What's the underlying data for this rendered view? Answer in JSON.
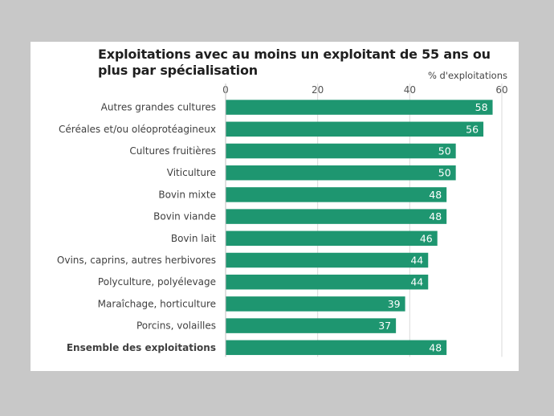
{
  "chart_data": {
    "type": "bar",
    "orientation": "horizontal",
    "title": "Exploitations avec au moins un exploitant de 55 ans ou plus par spécialisation",
    "xlabel": "% d'exploitations",
    "xlim": [
      0,
      60
    ],
    "xticks": [
      0,
      20,
      40,
      60
    ],
    "grid": true,
    "categories": [
      "Autres grandes cultures",
      "Céréales et/ou oléoprotéagineux",
      "Cultures fruitières",
      "Viticulture",
      "Bovin mixte",
      "Bovin viande",
      "Bovin lait",
      "Ovins, caprins, autres herbivores",
      "Polyculture, polyélevage",
      "Maraîchage, horticulture",
      "Porcins, volailles",
      "Ensemble des exploitations"
    ],
    "values": [
      58,
      56,
      50,
      50,
      48,
      48,
      46,
      44,
      44,
      39,
      37,
      48
    ],
    "bold_categories": [
      "Ensemble des exploitations"
    ],
    "bar_color": "#1e9670"
  }
}
